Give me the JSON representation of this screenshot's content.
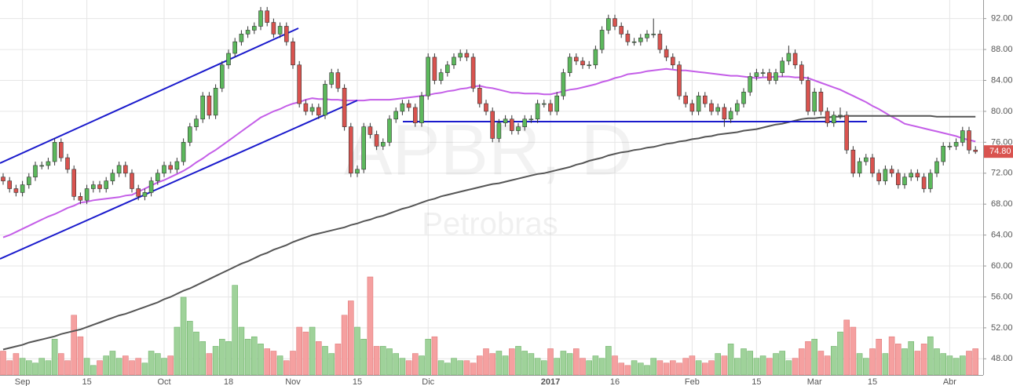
{
  "chart_data": {
    "type": "candlestick",
    "title": "APBR, D",
    "subtitle": "Petrobras",
    "last_label": "74.80",
    "up_color": "#5cb85c",
    "down_color": "#d9534f",
    "up_volume_color": "#9fd29a",
    "down_volume_color": "#f5a0a0",
    "grid": true,
    "ylim": [
      45.9,
      94.4
    ],
    "yticks": [
      {
        "value": 48,
        "label": "48.00"
      },
      {
        "value": 52,
        "label": "52.00"
      },
      {
        "value": 56,
        "label": "56.00"
      },
      {
        "value": 60,
        "label": "60.00"
      },
      {
        "value": 64,
        "label": "64.00"
      },
      {
        "value": 68,
        "label": "68.00"
      },
      {
        "value": 72,
        "label": "72.00"
      },
      {
        "value": 76,
        "label": "76.00"
      },
      {
        "value": 80,
        "label": "80.00"
      },
      {
        "value": 84,
        "label": "84.00"
      },
      {
        "value": 88,
        "label": "88.00"
      },
      {
        "value": 92,
        "label": "92.00"
      }
    ],
    "categories": [
      null,
      null,
      null,
      "Sep",
      null,
      null,
      null,
      null,
      null,
      null,
      null,
      null,
      null,
      "15",
      null,
      null,
      null,
      null,
      null,
      null,
      null,
      null,
      null,
      null,
      null,
      "Oct",
      null,
      null,
      null,
      null,
      null,
      null,
      null,
      null,
      null,
      "18",
      null,
      null,
      null,
      null,
      null,
      null,
      null,
      null,
      null,
      "Nov",
      null,
      null,
      null,
      null,
      null,
      null,
      null,
      null,
      null,
      "15",
      null,
      null,
      null,
      null,
      null,
      null,
      null,
      null,
      null,
      null,
      "Dic",
      null,
      null,
      null,
      null,
      null,
      null,
      null,
      null,
      null,
      null,
      null,
      null,
      null,
      null,
      null,
      null,
      null,
      null,
      "2017",
      null,
      null,
      null,
      null,
      null,
      null,
      null,
      null,
      null,
      "16",
      null,
      null,
      null,
      null,
      null,
      null,
      null,
      null,
      null,
      null,
      null,
      "Feb",
      null,
      null,
      null,
      null,
      null,
      null,
      null,
      null,
      null,
      "15",
      null,
      null,
      null,
      null,
      null,
      null,
      null,
      null,
      "Mar",
      null,
      null,
      null,
      null,
      null,
      null,
      null,
      null,
      "15",
      null,
      null,
      null,
      null,
      null,
      null,
      null,
      null,
      null,
      null,
      null,
      "Abr",
      null,
      null,
      null,
      null
    ],
    "ohlc": [
      [
        71.5,
        72,
        70.5,
        71
      ],
      [
        71,
        71.5,
        69.5,
        70
      ],
      [
        70,
        70.5,
        69,
        69.5
      ],
      [
        69.5,
        71,
        69,
        70.5
      ],
      [
        70.5,
        72,
        70,
        71.5
      ],
      [
        71.5,
        73.5,
        71,
        73
      ],
      [
        73,
        73.5,
        72.5,
        73
      ],
      [
        73,
        74,
        72.5,
        73.5
      ],
      [
        73.5,
        76.5,
        73,
        76
      ],
      [
        76,
        76.5,
        73.5,
        74
      ],
      [
        74,
        74.5,
        72,
        72.5
      ],
      [
        72.5,
        73,
        68.5,
        69
      ],
      [
        69,
        69.5,
        68,
        68.5
      ],
      [
        68.5,
        70.5,
        68,
        70
      ],
      [
        70,
        71,
        69.5,
        70.5
      ],
      [
        70.5,
        71,
        69.5,
        70
      ],
      [
        70,
        71.5,
        69.5,
        71
      ],
      [
        71,
        72.5,
        70.5,
        72
      ],
      [
        72,
        73.5,
        71.5,
        73
      ],
      [
        73,
        73.5,
        71.5,
        72
      ],
      [
        72,
        72.5,
        69.5,
        70
      ],
      [
        70,
        70.5,
        68.5,
        69
      ],
      [
        69,
        70,
        68.5,
        69.5
      ],
      [
        69.5,
        71.5,
        69,
        71
      ],
      [
        71,
        72.5,
        70.5,
        72
      ],
      [
        72,
        73.5,
        71.5,
        73
      ],
      [
        73,
        73.5,
        72,
        72.5
      ],
      [
        72.5,
        74,
        72,
        73.5
      ],
      [
        73.5,
        76.5,
        73,
        76
      ],
      [
        76,
        78.5,
        75.5,
        78
      ],
      [
        78,
        79.5,
        77.5,
        79
      ],
      [
        79,
        82.5,
        78.5,
        82
      ],
      [
        82,
        82.5,
        79,
        79.5
      ],
      [
        79.5,
        83.5,
        79,
        83
      ],
      [
        83,
        86.5,
        82.5,
        86
      ],
      [
        86,
        88,
        85.5,
        87.5
      ],
      [
        87.5,
        89.5,
        87,
        89
      ],
      [
        89,
        90.5,
        88.5,
        90
      ],
      [
        90,
        91,
        89.5,
        90.5
      ],
      [
        90.5,
        91.5,
        90,
        91
      ],
      [
        91,
        93.5,
        90.5,
        93
      ],
      [
        93,
        93.5,
        91,
        91.5
      ],
      [
        91.5,
        92,
        89.5,
        90
      ],
      [
        90,
        91.5,
        89.5,
        91
      ],
      [
        91,
        91.5,
        88.5,
        89
      ],
      [
        89,
        89.5,
        85.5,
        86
      ],
      [
        86,
        86.5,
        80.5,
        81
      ],
      [
        81,
        81.5,
        79.5,
        80
      ],
      [
        80,
        81,
        79.5,
        80.5
      ],
      [
        80.5,
        81,
        79,
        79.5
      ],
      [
        79.5,
        84,
        79,
        83.5
      ],
      [
        83.5,
        85.5,
        83,
        85
      ],
      [
        85,
        85.5,
        82.5,
        83
      ],
      [
        83,
        83.5,
        77.5,
        78
      ],
      [
        78,
        78.5,
        71.5,
        72
      ],
      [
        72,
        73,
        71.5,
        72.5
      ],
      [
        72.5,
        78.5,
        72,
        78
      ],
      [
        78,
        78.5,
        76.5,
        77
      ],
      [
        77,
        77.5,
        75,
        75.5
      ],
      [
        75.5,
        76.5,
        75,
        76
      ],
      [
        76,
        79.5,
        75.5,
        79
      ],
      [
        79,
        80.5,
        78.5,
        80
      ],
      [
        80,
        81.5,
        79.5,
        81
      ],
      [
        81,
        81.5,
        80,
        80.5
      ],
      [
        80.5,
        81,
        78,
        78.5
      ],
      [
        78.5,
        82.5,
        78,
        82
      ],
      [
        82,
        87.5,
        81.5,
        87
      ],
      [
        87,
        87.5,
        83.5,
        84
      ],
      [
        84,
        85.5,
        83.5,
        85
      ],
      [
        85,
        86.5,
        84.5,
        86
      ],
      [
        86,
        87.5,
        85.5,
        87
      ],
      [
        87,
        88,
        86.5,
        87.5
      ],
      [
        87.5,
        88,
        86.5,
        87
      ],
      [
        87,
        87.5,
        82.5,
        83
      ],
      [
        83,
        83.5,
        80.5,
        81
      ],
      [
        81,
        81.5,
        79.5,
        80
      ],
      [
        80,
        80.5,
        76,
        76.5
      ],
      [
        76.5,
        79,
        76,
        78.5
      ],
      [
        78.5,
        79.5,
        78,
        79
      ],
      [
        79,
        79.5,
        77,
        77.5
      ],
      [
        77.5,
        78.5,
        77,
        78
      ],
      [
        78,
        79.5,
        77.5,
        79
      ],
      [
        79,
        79.5,
        78.5,
        79
      ],
      [
        79,
        81.5,
        78.5,
        81
      ],
      [
        81,
        81.5,
        80.5,
        81
      ],
      [
        81,
        81.5,
        79.5,
        80
      ],
      [
        80,
        82.5,
        79.5,
        82
      ],
      [
        82,
        85.5,
        81.5,
        85
      ],
      [
        85,
        87.5,
        84.5,
        87
      ],
      [
        87,
        87.5,
        86,
        86.5
      ],
      [
        86.5,
        87,
        85.5,
        86
      ],
      [
        86,
        86.5,
        85.5,
        86
      ],
      [
        86,
        88.5,
        85.5,
        88
      ],
      [
        88,
        91,
        87.5,
        90.5
      ],
      [
        90.5,
        92.5,
        90,
        92
      ],
      [
        92,
        92.5,
        90.5,
        91
      ],
      [
        91,
        91.5,
        89.5,
        90
      ],
      [
        90,
        90.5,
        88.5,
        89
      ],
      [
        89,
        89.5,
        88.5,
        89
      ],
      [
        89,
        90,
        88.5,
        89.5
      ],
      [
        89.5,
        90.5,
        89,
        90
      ],
      [
        90,
        92,
        89.5,
        90
      ],
      [
        90,
        90.5,
        87.5,
        88
      ],
      [
        88,
        88.5,
        86.5,
        87
      ],
      [
        87,
        87.5,
        85.5,
        86
      ],
      [
        86,
        86.5,
        81.5,
        82
      ],
      [
        82,
        82.5,
        80.5,
        81
      ],
      [
        81,
        81.5,
        79.5,
        80
      ],
      [
        80,
        82.5,
        79.5,
        82
      ],
      [
        82,
        82.5,
        80.5,
        81
      ],
      [
        81,
        81.5,
        79.5,
        80
      ],
      [
        80,
        81,
        79.5,
        80.5
      ],
      [
        80.5,
        81,
        78,
        79
      ],
      [
        79,
        80.5,
        78.5,
        80
      ],
      [
        80,
        81.5,
        79.5,
        81
      ],
      [
        81,
        83,
        80.5,
        82.5
      ],
      [
        82.5,
        85,
        82,
        84.5
      ],
      [
        84.5,
        85.5,
        84,
        85
      ],
      [
        85,
        85.5,
        84.5,
        85
      ],
      [
        85,
        85.5,
        83.5,
        84
      ],
      [
        84,
        85.5,
        83.5,
        85
      ],
      [
        85,
        87,
        84.5,
        86.5
      ],
      [
        86.5,
        88.5,
        86,
        87.5
      ],
      [
        87.5,
        88,
        85.5,
        86
      ],
      [
        86,
        86.5,
        83.5,
        84
      ],
      [
        84,
        84.5,
        79.5,
        80
      ],
      [
        80,
        83,
        79.5,
        82.5
      ],
      [
        82.5,
        83,
        79.5,
        80
      ],
      [
        80,
        80.5,
        78,
        78.5
      ],
      [
        78.5,
        80,
        78,
        79.5
      ],
      [
        79.5,
        80.5,
        79,
        79.5
      ],
      [
        79.5,
        80,
        74.5,
        75
      ],
      [
        75,
        75.5,
        71.5,
        72
      ],
      [
        72,
        74,
        71.5,
        73.5
      ],
      [
        73.5,
        74.5,
        73,
        74
      ],
      [
        74,
        74.5,
        71.5,
        72
      ],
      [
        72,
        72.5,
        70.5,
        71
      ],
      [
        71,
        73,
        70.5,
        72.5
      ],
      [
        72.5,
        73,
        71.5,
        72
      ],
      [
        72,
        72.5,
        70,
        70.5
      ],
      [
        70.5,
        72,
        70,
        71.5
      ],
      [
        71.5,
        72.5,
        71,
        72
      ],
      [
        72,
        72.5,
        71,
        71.5
      ],
      [
        71.5,
        72,
        69.5,
        70
      ],
      [
        70,
        72.5,
        69.5,
        72
      ],
      [
        72,
        74,
        71.5,
        73.5
      ],
      [
        73.5,
        76,
        73,
        75.5
      ],
      [
        75.5,
        76,
        75,
        75.5
      ],
      [
        75.5,
        76.5,
        75,
        76
      ],
      [
        76,
        78,
        75.5,
        77.5
      ],
      [
        77.5,
        78,
        74.5,
        75
      ],
      [
        75,
        75.5,
        74.5,
        74.8
      ]
    ],
    "volume": [
      20,
      12,
      18,
      14,
      12,
      10,
      14,
      12,
      30,
      18,
      12,
      50,
      32,
      14,
      8,
      12,
      16,
      20,
      14,
      16,
      12,
      14,
      10,
      20,
      18,
      14,
      16,
      40,
      65,
      45,
      36,
      28,
      18,
      24,
      30,
      28,
      75,
      40,
      30,
      32,
      26,
      22,
      20,
      16,
      12,
      20,
      40,
      36,
      40,
      28,
      24,
      18,
      26,
      50,
      62,
      40,
      30,
      82,
      24,
      24,
      22,
      18,
      14,
      12,
      18,
      16,
      30,
      32,
      12,
      10,
      14,
      12,
      12,
      10,
      16,
      22,
      18,
      20,
      16,
      22,
      24,
      20,
      18,
      14,
      12,
      22,
      14,
      20,
      18,
      22,
      14,
      12,
      16,
      14,
      24,
      16,
      10,
      8,
      12,
      10,
      8,
      14,
      12,
      10,
      12,
      10,
      14,
      16,
      12,
      10,
      12,
      18,
      16,
      26,
      14,
      22,
      20,
      14,
      16,
      14,
      18,
      20,
      12,
      14,
      22,
      28,
      30,
      20,
      16,
      24,
      36,
      46,
      40,
      18,
      14,
      22,
      30,
      18,
      32,
      26,
      22,
      28,
      20,
      26,
      32,
      22,
      18,
      16,
      14,
      16,
      20,
      22
    ],
    "lines": [
      {
        "color": "#c45ee8",
        "values": [
          63.7,
          64.0,
          64.4,
          64.8,
          65.2,
          65.6,
          66.0,
          66.4,
          66.7,
          67.1,
          67.5,
          67.8,
          68.2,
          68.3,
          68.5,
          68.6,
          68.7,
          68.8,
          68.9,
          69.1,
          69.2,
          69.6,
          70.0,
          70.4,
          70.8,
          71.1,
          71.5,
          71.9,
          72.3,
          72.8,
          73.4,
          73.9,
          74.5,
          75.0,
          75.6,
          76.2,
          76.8,
          77.4,
          78.0,
          78.6,
          79.2,
          79.6,
          80.0,
          80.3,
          80.7,
          81.0,
          81.2,
          81.5,
          81.7,
          81.6,
          81.6,
          81.5,
          81.5,
          81.4,
          81.4,
          81.4,
          81.4,
          81.5,
          81.5,
          81.5,
          81.5,
          81.6,
          81.7,
          81.8,
          81.9,
          82.0,
          82.1,
          82.3,
          82.4,
          82.6,
          82.7,
          82.9,
          83.0,
          83.2,
          83.3,
          83.1,
          83.0,
          82.8,
          82.6,
          82.4,
          82.4,
          82.3,
          82.3,
          82.3,
          82.2,
          82.2,
          82.4,
          82.6,
          82.8,
          82.9,
          83.1,
          83.3,
          83.5,
          83.8,
          84.0,
          84.3,
          84.5,
          84.8,
          84.9,
          85.0,
          85.2,
          85.3,
          85.4,
          85.5,
          85.4,
          85.3,
          85.3,
          85.2,
          85.1,
          85.0,
          84.9,
          84.8,
          84.7,
          84.6,
          84.6,
          84.5,
          84.4,
          84.3,
          84.4,
          84.4,
          84.5,
          84.5,
          84.5,
          84.4,
          84.4,
          84.3,
          84.0,
          83.7,
          83.4,
          83.1,
          82.8,
          82.4,
          82.0,
          81.6,
          81.2,
          80.7,
          80.3,
          79.8,
          79.3,
          78.9,
          78.4,
          78.2,
          78.0,
          77.8,
          77.6,
          77.4,
          77.2,
          77.0,
          76.8,
          76.5,
          76.3,
          76.1
        ]
      },
      {
        "color": "#555555",
        "values": [
          49.2,
          49.4,
          49.6,
          49.8,
          50.1,
          50.3,
          50.5,
          50.7,
          50.9,
          51.2,
          51.4,
          51.6,
          51.8,
          52.1,
          52.4,
          52.7,
          53.0,
          53.3,
          53.6,
          53.8,
          54.1,
          54.4,
          54.7,
          55.0,
          55.3,
          55.7,
          56.0,
          56.4,
          56.8,
          57.1,
          57.5,
          57.9,
          58.3,
          58.7,
          59.1,
          59.5,
          59.9,
          60.3,
          60.6,
          61.0,
          61.4,
          61.7,
          62.1,
          62.4,
          62.7,
          63.1,
          63.4,
          63.7,
          64.0,
          64.2,
          64.4,
          64.6,
          64.8,
          65.0,
          65.3,
          65.5,
          65.8,
          66.0,
          66.3,
          66.5,
          66.8,
          67.1,
          67.4,
          67.6,
          67.9,
          68.2,
          68.5,
          68.7,
          69.0,
          69.2,
          69.4,
          69.6,
          69.8,
          70.0,
          70.2,
          70.4,
          70.6,
          70.7,
          70.9,
          71.1,
          71.3,
          71.5,
          71.7,
          71.9,
          72.0,
          72.2,
          72.4,
          72.6,
          72.8,
          73.1,
          73.3,
          73.6,
          73.8,
          74.0,
          74.3,
          74.5,
          74.7,
          74.8,
          75.0,
          75.1,
          75.3,
          75.4,
          75.6,
          75.8,
          75.9,
          76.1,
          76.2,
          76.4,
          76.5,
          76.7,
          76.8,
          77.0,
          77.1,
          77.2,
          77.3,
          77.5,
          77.6,
          77.7,
          77.9,
          78.1,
          78.3,
          78.4,
          78.6,
          78.8,
          79.0,
          79.1,
          79.1,
          79.2,
          79.2,
          79.3,
          79.3,
          79.4,
          79.4,
          79.4,
          79.4,
          79.4,
          79.4,
          79.4,
          79.4,
          79.4,
          79.4,
          79.4,
          79.4,
          79.4,
          79.4,
          79.3,
          79.3,
          79.3,
          79.3,
          79.3,
          79.3,
          79.3
        ]
      }
    ]
  }
}
